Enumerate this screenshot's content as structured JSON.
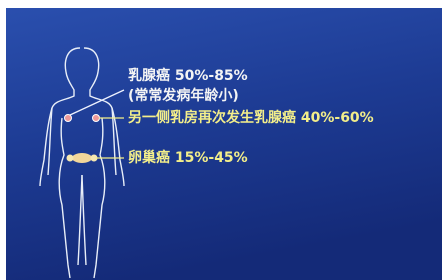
{
  "labels": [
    {
      "text": "乳腺癌 50%-85%"
    },
    {
      "text": "(常常发病年龄小)"
    },
    {
      "text": "另一侧乳房再次发生乳腺癌 40%-60%"
    },
    {
      "text": "卵巢癌 15%-45%"
    }
  ]
}
